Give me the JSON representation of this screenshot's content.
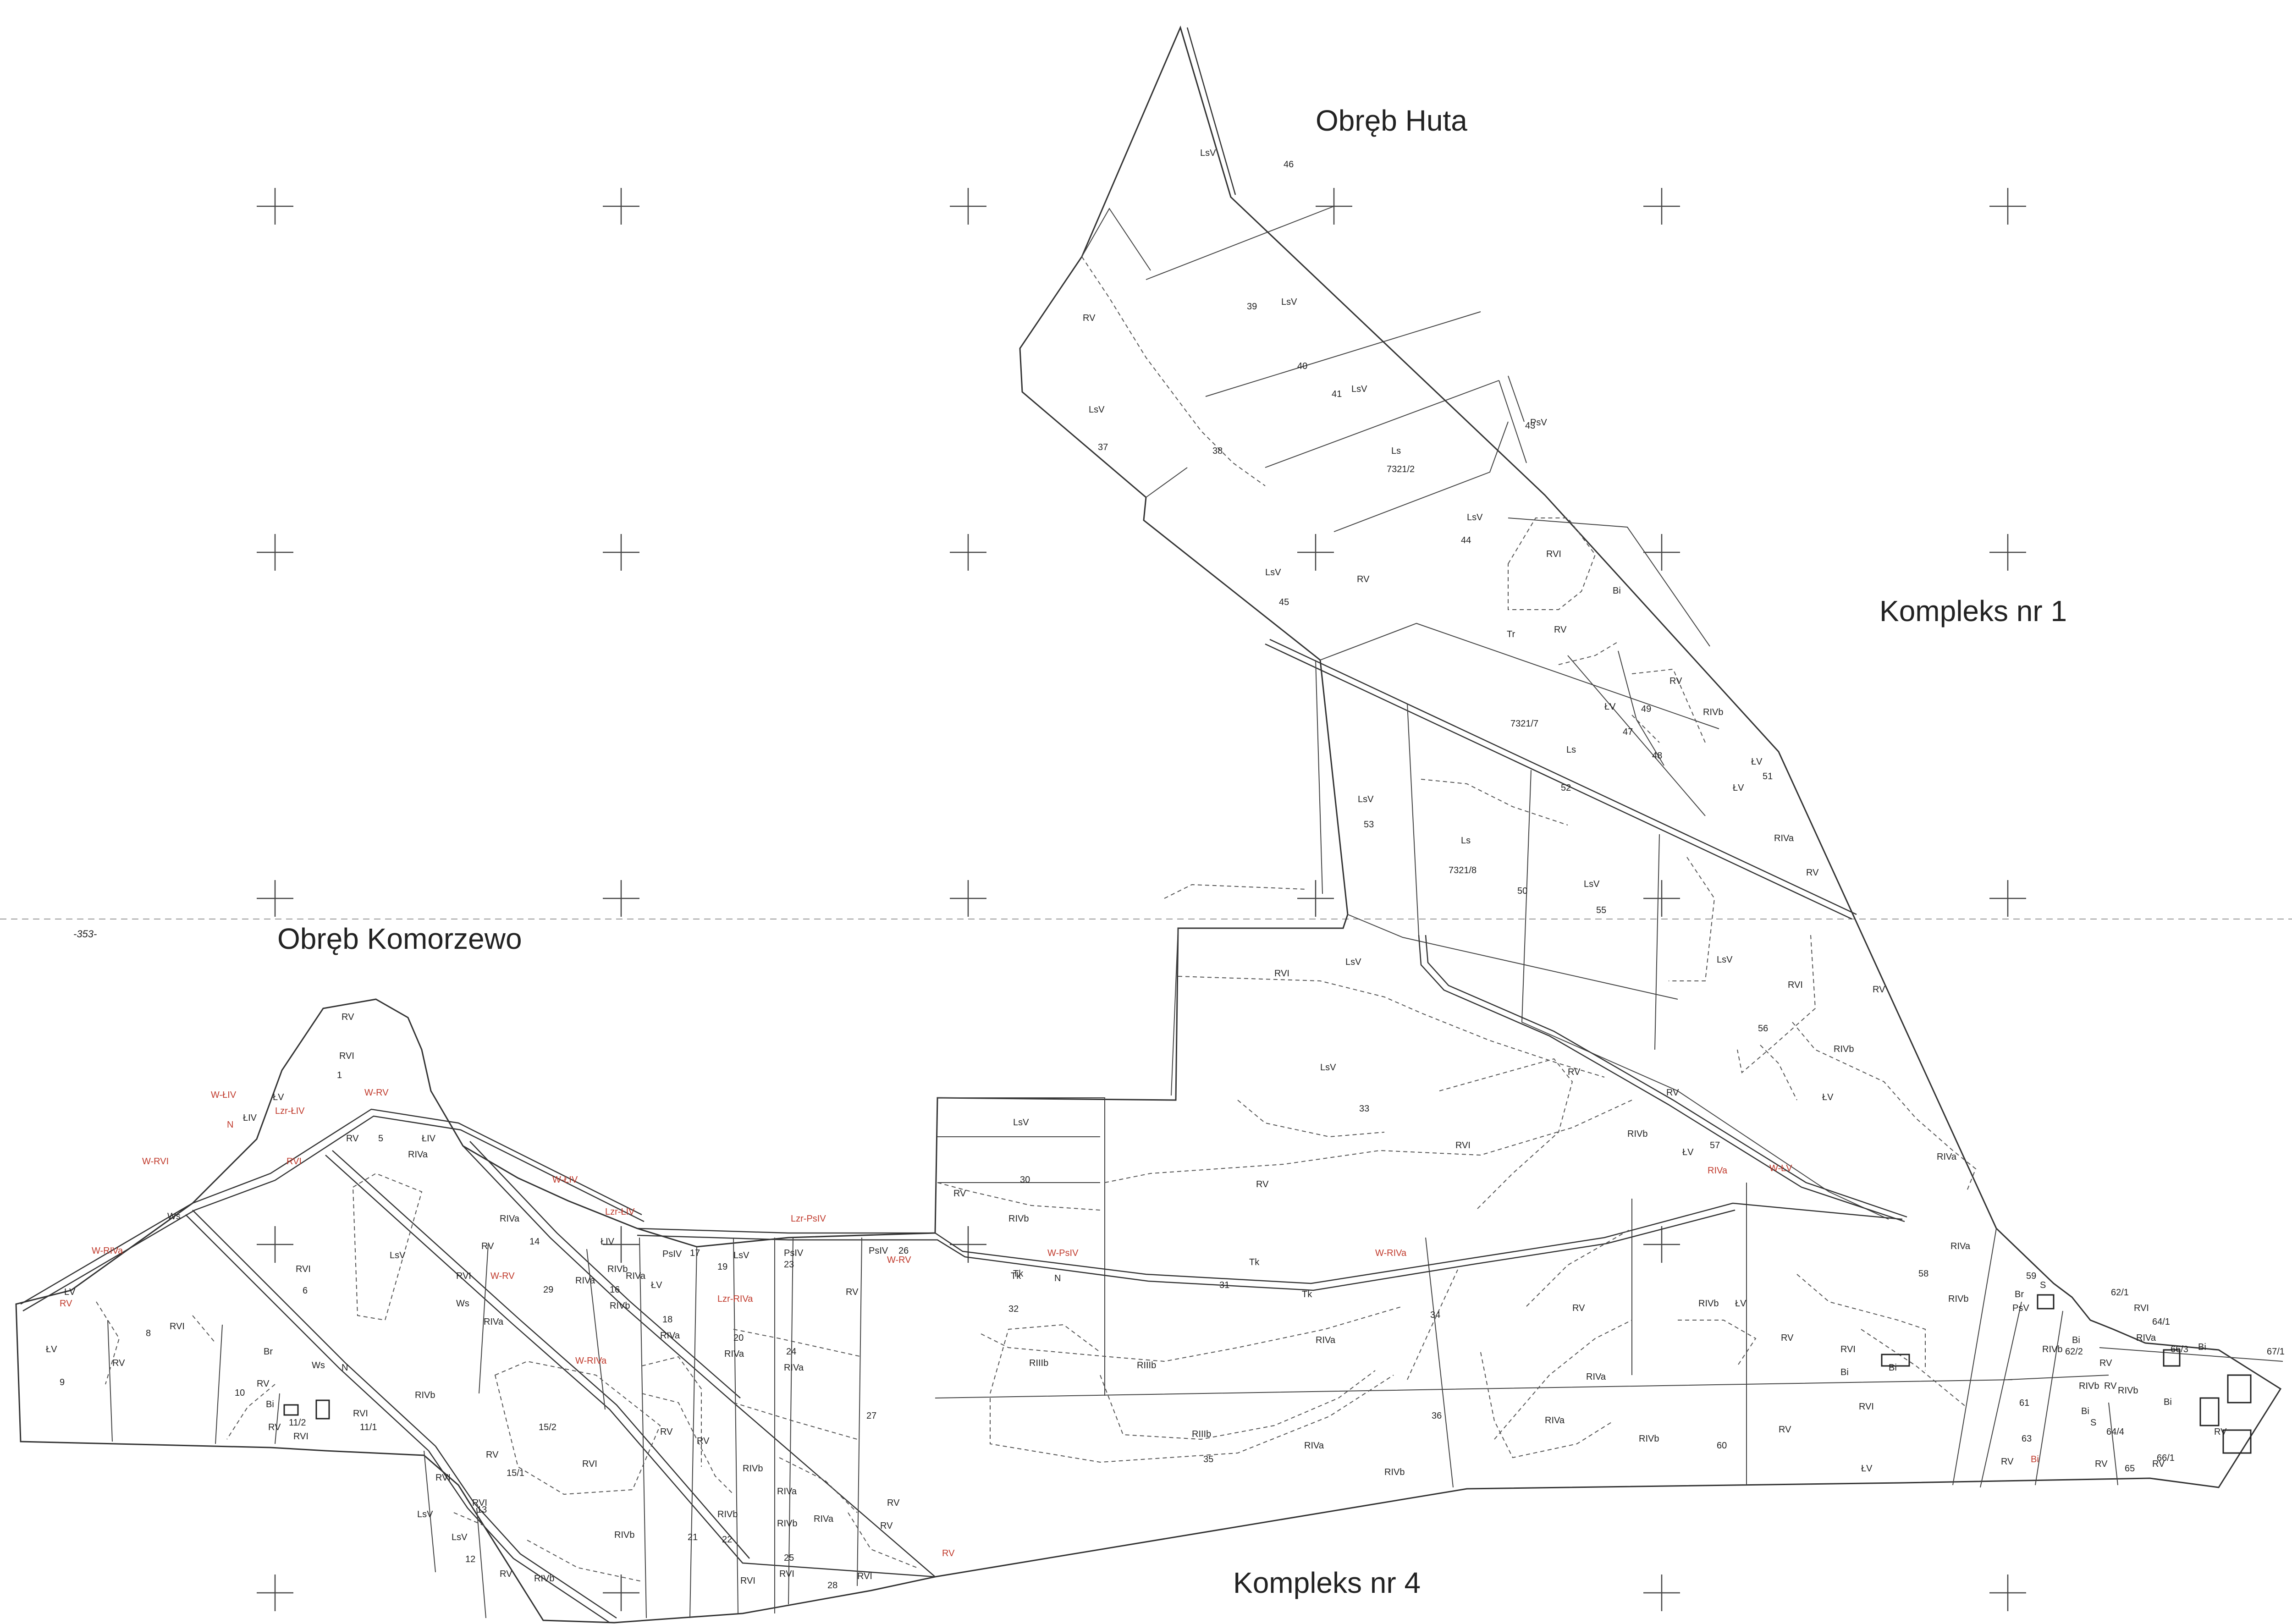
{
  "map": {
    "titles": {
      "huta": "Obręb Huta",
      "komorzewo": "Obręb Komorzewo",
      "kompleks1": "Kompleks nr 1",
      "kompleks4": "Kompleks nr 4",
      "sheet_mark": "-353-"
    },
    "colors": {
      "line": "#333333",
      "text": "#222222",
      "red_annotation": "#c0392b",
      "background": "#ffffff"
    },
    "parcel_numbers": [
      "1",
      "5",
      "6",
      "8",
      "9",
      "10",
      "11/1",
      "11/2",
      "12",
      "13",
      "14",
      "15/1",
      "15/2",
      "16",
      "17",
      "18",
      "19",
      "20",
      "21",
      "22",
      "23",
      "24",
      "25",
      "26",
      "27",
      "28",
      "29",
      "30",
      "31",
      "32",
      "33",
      "34",
      "35",
      "36",
      "37",
      "38",
      "39",
      "40",
      "41",
      "43",
      "44",
      "45",
      "46",
      "47",
      "48",
      "49",
      "50",
      "51",
      "52",
      "53",
      "55",
      "56",
      "57",
      "58",
      "59",
      "60",
      "61",
      "62/1",
      "62/2",
      "63",
      "64/1",
      "64/4",
      "65",
      "66/1",
      "66/3",
      "67/1",
      "7321/2",
      "7321/7",
      "7321/8"
    ],
    "land_classes": [
      "LsV",
      "Ls",
      "RV",
      "RVI",
      "RIVa",
      "RIVb",
      "RIIIb",
      "ŁV",
      "ŁIV",
      "PsIV",
      "PsV",
      "Tr",
      "Tk",
      "N",
      "Ws",
      "Br",
      "Bi",
      "S"
    ],
    "red_annotations": [
      "W-ŁIV",
      "Lzr-ŁIV",
      "W-RV",
      "W-RVI",
      "W-RIVa",
      "Lzr-RIVa",
      "Lzr-PsIV",
      "W-PsIV",
      "W-ŁV",
      "W-ŁIV",
      "W-RIVa",
      "W-RV",
      "RVI",
      "RIVa",
      "RV",
      "W-RIVa",
      "Lzr-ŁIV",
      "W-RV",
      "N",
      "RV",
      "Bi"
    ]
  }
}
